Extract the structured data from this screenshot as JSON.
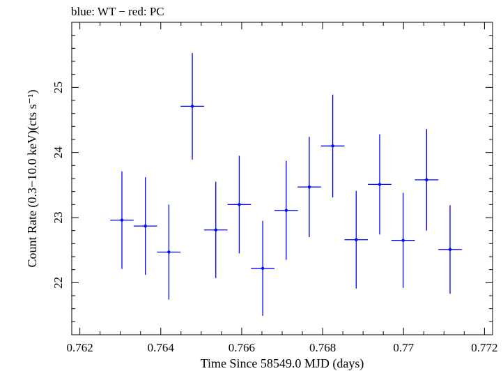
{
  "chart_data": {
    "type": "scatter",
    "title": "blue: WT − red: PC",
    "xlabel": "Time Since 58549.0 MJD (days)",
    "ylabel": "Count Rate (0.3−10.0 keV)(cts s⁻¹)",
    "xlim": [
      0.7618,
      0.7722
    ],
    "ylim": [
      21.2,
      26.0
    ],
    "x_ticks": [
      0.762,
      0.764,
      0.766,
      0.768,
      0.77,
      0.772
    ],
    "x_tick_labels": [
      "0.762",
      "0.764",
      "0.766",
      "0.768",
      "0.77",
      "0.772"
    ],
    "y_ticks": [
      22,
      23,
      24,
      25
    ],
    "y_tick_labels": [
      "22",
      "23",
      "24",
      "25"
    ],
    "grid": false,
    "series": [
      {
        "color": "#0000ff",
        "points": [
          {
            "x": 0.76304,
            "y": 22.96,
            "xerr": 0.00029,
            "yerr": 0.75
          },
          {
            "x": 0.76362,
            "y": 22.87,
            "xerr": 0.00029,
            "yerr": 0.75
          },
          {
            "x": 0.7642,
            "y": 22.47,
            "xerr": 0.00029,
            "yerr": 0.73
          },
          {
            "x": 0.76478,
            "y": 24.71,
            "xerr": 0.00029,
            "yerr": 0.82
          },
          {
            "x": 0.76536,
            "y": 22.81,
            "xerr": 0.00029,
            "yerr": 0.74
          },
          {
            "x": 0.76594,
            "y": 23.2,
            "xerr": 0.00029,
            "yerr": 0.75
          },
          {
            "x": 0.76652,
            "y": 22.22,
            "xerr": 0.00029,
            "yerr": 0.73
          },
          {
            "x": 0.7671,
            "y": 23.11,
            "xerr": 0.00029,
            "yerr": 0.76
          },
          {
            "x": 0.76767,
            "y": 23.47,
            "xerr": 0.00029,
            "yerr": 0.77
          },
          {
            "x": 0.76825,
            "y": 24.1,
            "xerr": 0.00029,
            "yerr": 0.79
          },
          {
            "x": 0.76883,
            "y": 22.66,
            "xerr": 0.00029,
            "yerr": 0.75
          },
          {
            "x": 0.76941,
            "y": 23.51,
            "xerr": 0.00029,
            "yerr": 0.77
          },
          {
            "x": 0.76999,
            "y": 22.65,
            "xerr": 0.00029,
            "yerr": 0.73
          },
          {
            "x": 0.77057,
            "y": 23.58,
            "xerr": 0.00029,
            "yerr": 0.78
          },
          {
            "x": 0.77115,
            "y": 22.51,
            "xerr": 0.00029,
            "yerr": 0.68
          }
        ]
      }
    ]
  }
}
